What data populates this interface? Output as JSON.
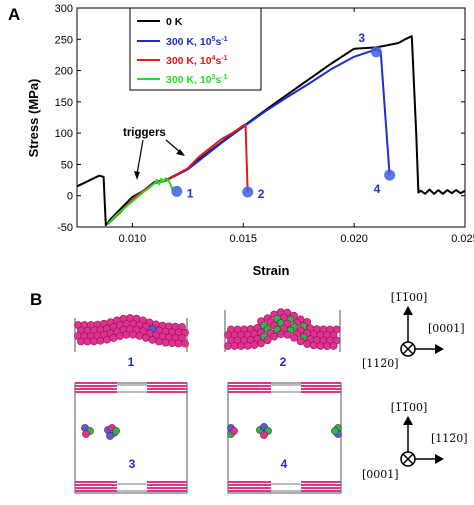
{
  "panels": {
    "a_label": "A",
    "b_label": "B"
  },
  "chart_data": {
    "type": "line",
    "title": "",
    "xlabel": "Strain",
    "ylabel": "Stress (MPa)",
    "xlim": [
      0.0075,
      0.025
    ],
    "ylim": [
      -50,
      300
    ],
    "xticks": [
      "0.010",
      "0.015",
      "0.020",
      "0.025"
    ],
    "xtick_values": [
      0.01,
      0.015,
      0.02,
      0.025
    ],
    "yticks": [
      "-50",
      "0",
      "50",
      "100",
      "150",
      "200",
      "250",
      "300"
    ],
    "ytick_values": [
      -50,
      0,
      50,
      100,
      150,
      200,
      250,
      300
    ],
    "grid": false,
    "legend_position": "top-left",
    "series": [
      {
        "name": "0 K",
        "color": "#000000",
        "x": [
          0.0075,
          0.0078,
          0.0082,
          0.0085,
          0.0087,
          0.0088,
          0.0089,
          0.009,
          0.0095,
          0.01,
          0.0105,
          0.011,
          0.0115,
          0.0125,
          0.013,
          0.014,
          0.015,
          0.016,
          0.017,
          0.018,
          0.019,
          0.02,
          0.021,
          0.022,
          0.0223,
          0.0226,
          0.0228,
          0.0229,
          0.023,
          0.0232,
          0.0234,
          0.0236,
          0.0238,
          0.024,
          0.0242,
          0.0244,
          0.0246,
          0.0248,
          0.025
        ],
        "y": [
          15,
          20,
          27,
          32,
          30,
          -47,
          -43,
          -38,
          -20,
          -2,
          8,
          22,
          25,
          43,
          58,
          85,
          111,
          137,
          162,
          187,
          212,
          235,
          237,
          244,
          250,
          255,
          100,
          5,
          8,
          3,
          10,
          3,
          9,
          3,
          9,
          4,
          9,
          4,
          8
        ]
      },
      {
        "name": "300 K, 10^5s^-1",
        "color": "#1f2ccf",
        "x": [
          0.0089,
          0.0095,
          0.01,
          0.0105,
          0.011,
          0.0115,
          0.0125,
          0.013,
          0.014,
          0.015,
          0.016,
          0.017,
          0.018,
          0.019,
          0.02,
          0.021,
          0.0212,
          0.0216
        ],
        "y": [
          -45,
          -25,
          -5,
          8,
          20,
          24,
          42,
          56,
          84,
          110,
          135,
          158,
          180,
          203,
          222,
          234,
          230,
          33
        ]
      },
      {
        "name": "300 K, 10^4s^-1",
        "color": "#e01818",
        "x": [
          0.0089,
          0.0095,
          0.01,
          0.0105,
          0.011,
          0.0115,
          0.012,
          0.0125,
          0.013,
          0.0135,
          0.014,
          0.0145,
          0.015,
          0.0151,
          0.0152
        ],
        "y": [
          -45,
          -25,
          -5,
          8,
          20,
          24,
          34,
          44,
          62,
          76,
          90,
          100,
          112,
          114,
          6
        ]
      },
      {
        "name": "300 K, 10^3s^-1",
        "color": "#22dd22",
        "x": [
          0.0089,
          0.0093,
          0.0097,
          0.0101,
          0.0105,
          0.0108,
          0.011,
          0.0111,
          0.0112,
          0.0113,
          0.0114,
          0.0115,
          0.0116,
          0.0117,
          0.0118
        ],
        "y": [
          -45,
          -30,
          -18,
          -6,
          6,
          14,
          20,
          25,
          18,
          27,
          22,
          28,
          25,
          20,
          10
        ]
      }
    ],
    "legend": [
      "0 K",
      "300 K, 10^5s^-1",
      "300 K, 10^4s^-1",
      "300 K, 10^3s^-1"
    ],
    "markers": [
      {
        "label": "1",
        "x": 0.012,
        "y": 7
      },
      {
        "label": "2",
        "x": 0.0152,
        "y": 6
      },
      {
        "label": "3",
        "x": 0.021,
        "y": 230
      },
      {
        "label": "4",
        "x": 0.0216,
        "y": 33
      }
    ],
    "annotation": {
      "text": "triggers"
    }
  },
  "snapshots": {
    "labels": [
      "1",
      "2",
      "3",
      "4"
    ],
    "colors": {
      "atom": "#e0338f",
      "atom_edge": "#8c1256",
      "green": "#22bb44",
      "blue": "#4466dd",
      "frame": "#555555"
    }
  },
  "orientation_top": {
    "up": "[1̅1̅00]",
    "right": "[0001]",
    "into": "[112̅0]"
  },
  "orientation_bottom": {
    "up": "[1̅1̅00]",
    "right": "[112̅0]",
    "into": "[0001]"
  }
}
